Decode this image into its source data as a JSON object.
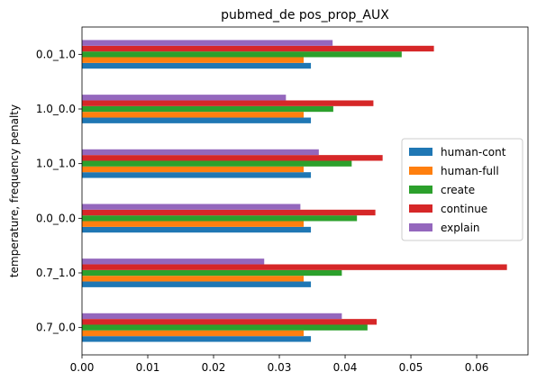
{
  "chart_data": {
    "type": "bar",
    "orientation": "horizontal",
    "title": "pubmed_de pos_prop_AUX",
    "xlabel": "",
    "ylabel": "temperature, frequency penalty",
    "categories": [
      "0.7_0.0",
      "0.7_1.0",
      "0.0_0.0",
      "1.0_1.0",
      "1.0_0.0",
      "0.0_1.0"
    ],
    "series": [
      {
        "name": "human-cont",
        "color": "#1f77b4",
        "values": [
          0.0348,
          0.0348,
          0.0348,
          0.0348,
          0.0348,
          0.0348
        ]
      },
      {
        "name": "human-full",
        "color": "#ff7f0e",
        "values": [
          0.0337,
          0.0337,
          0.0337,
          0.0337,
          0.0337,
          0.0337
        ]
      },
      {
        "name": "create",
        "color": "#2ca02c",
        "values": [
          0.0434,
          0.0395,
          0.0418,
          0.041,
          0.0382,
          0.0486
        ]
      },
      {
        "name": "continue",
        "color": "#d62728",
        "values": [
          0.0448,
          0.0646,
          0.0446,
          0.0457,
          0.0443,
          0.0535
        ]
      },
      {
        "name": "explain",
        "color": "#9467bd",
        "values": [
          0.0395,
          0.0277,
          0.0332,
          0.036,
          0.031,
          0.0381
        ]
      }
    ],
    "xlim": [
      0,
      0.0678
    ],
    "xticks": [
      "0.00",
      "0.01",
      "0.02",
      "0.03",
      "0.04",
      "0.05",
      "0.06"
    ],
    "xtick_values": [
      0,
      0.01,
      0.02,
      0.03,
      0.04,
      0.05,
      0.06
    ],
    "legend_position": "center-right",
    "grid": false
  }
}
